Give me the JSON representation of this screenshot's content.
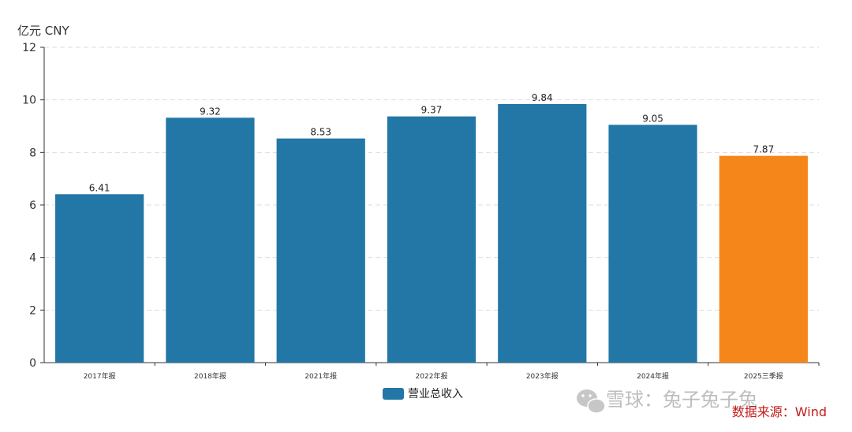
{
  "chart_data": {
    "type": "bar",
    "unit_label": "亿元  CNY",
    "categories": [
      "2017年报",
      "2018年报",
      "2021年报",
      "2022年报",
      "2023年报",
      "2024年报",
      "2025三季报"
    ],
    "series": [
      {
        "name": "营业总收入",
        "values": [
          6.41,
          9.32,
          8.53,
          9.37,
          9.84,
          9.05,
          7.87
        ]
      }
    ],
    "ylim": [
      0,
      12
    ],
    "yticks": [
      0,
      2,
      4,
      6,
      8,
      10,
      12
    ],
    "grid": true,
    "legend_position": "bottom-center",
    "colors": {
      "bar": "#2277a6",
      "highlight": "#f5871a",
      "grid": "#dddddd",
      "axis": "#333333"
    },
    "highlight_index": 6
  },
  "source_note": "数据来源：Wind",
  "watermark": {
    "icon": "wechat-icon",
    "text": "雪球：兔子兔子兔"
  }
}
